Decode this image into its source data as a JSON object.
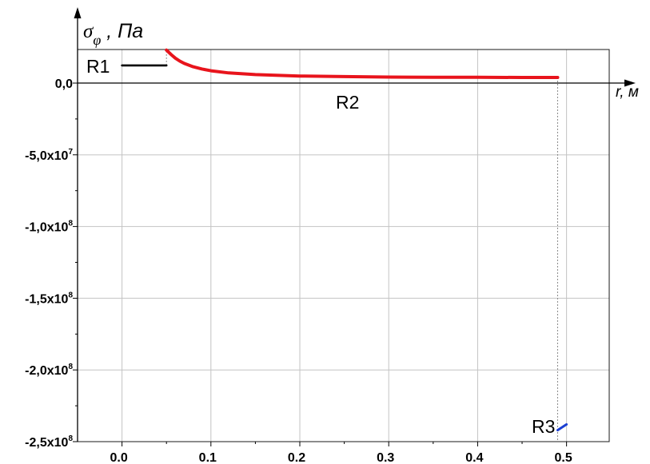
{
  "chart_data": {
    "type": "line",
    "ylabel": {
      "symbol": "σ",
      "subscript": "φ",
      "unit": " , Па"
    },
    "xlabel": "r, м",
    "xlim": [
      -0.05,
      0.548
    ],
    "ylim": [
      -250000000,
      23400000
    ],
    "grid": true,
    "x_ticks": [
      {
        "value": 0.0,
        "label": "0.0"
      },
      {
        "value": 0.1,
        "label": "0.1"
      },
      {
        "value": 0.2,
        "label": "0.2"
      },
      {
        "value": 0.3,
        "label": "0.3"
      },
      {
        "value": 0.4,
        "label": "0.4"
      },
      {
        "value": 0.5,
        "label": "0.5"
      }
    ],
    "y_ticks": [
      {
        "value": 0,
        "label": "0,0"
      },
      {
        "value": -50000000,
        "label": "-5,0x10",
        "exp": "7"
      },
      {
        "value": -100000000,
        "label": "-1,0x10",
        "exp": "8"
      },
      {
        "value": -150000000,
        "label": "-1,5x10",
        "exp": "8"
      },
      {
        "value": -200000000,
        "label": "-2,0x10",
        "exp": "8"
      },
      {
        "value": -250000000,
        "label": "-2,5x10",
        "exp": "8"
      }
    ],
    "series": [
      {
        "name": "R1",
        "color": "#000000",
        "x": [
          0.0,
          0.05
        ],
        "y": [
          12300000,
          12300000
        ]
      },
      {
        "name": "R2",
        "color": "#e8141c",
        "x": [
          0.05,
          0.055,
          0.06,
          0.065,
          0.07,
          0.08,
          0.09,
          0.1,
          0.12,
          0.15,
          0.2,
          0.25,
          0.3,
          0.35,
          0.4,
          0.45,
          0.49
        ],
        "y": [
          23000000,
          20000000,
          17400000,
          15300000,
          13700000,
          11400000,
          9800000,
          8600000,
          7100000,
          5900000,
          4900000,
          4500000,
          4200000,
          4100000,
          4000000,
          3900000,
          3900000
        ]
      },
      {
        "name": "R3",
        "color": "#1b3fd2",
        "x": [
          0.49,
          0.5
        ],
        "y": [
          -242000000,
          -238000000
        ]
      }
    ],
    "colors": {
      "grid": "#c3c3c3",
      "axis": "#000000",
      "frame": "#1a1a1a",
      "connector": "#8c8c8c"
    }
  }
}
